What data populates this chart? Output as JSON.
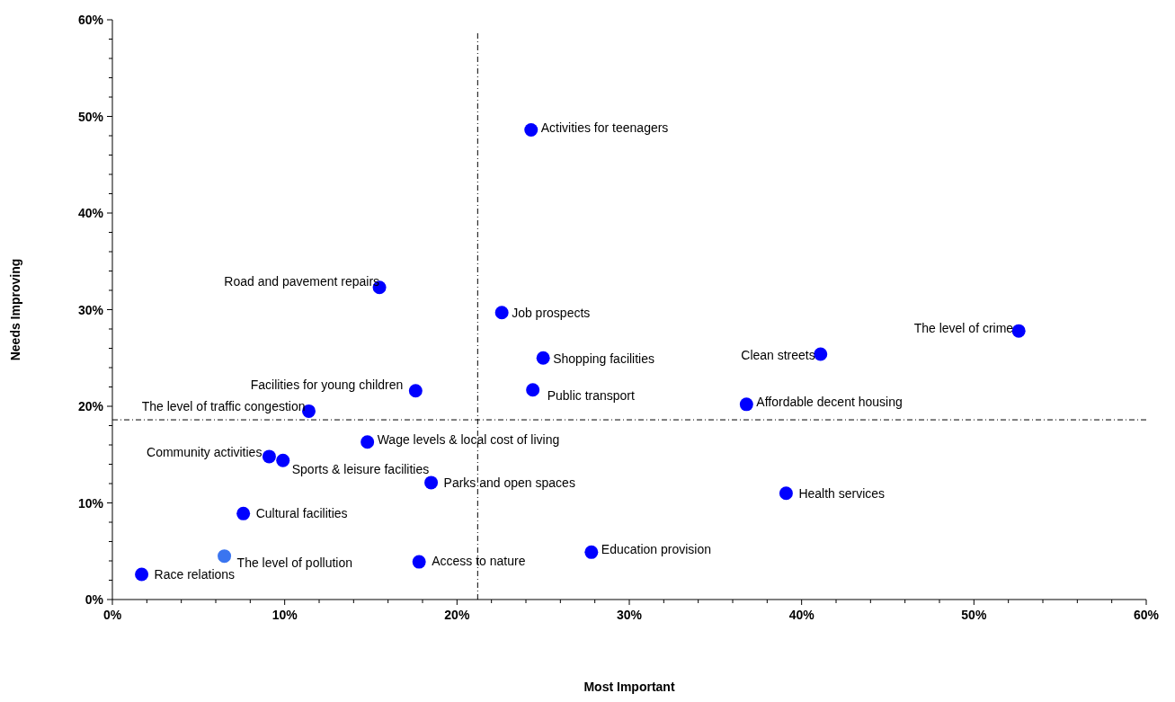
{
  "chart_data": {
    "type": "scatter",
    "xlabel": "Most Important",
    "ylabel": "Needs Improving",
    "x": [
      24.3,
      15.5,
      22.6,
      52.6,
      41.1,
      25.0,
      17.6,
      24.4,
      36.8,
      11.4,
      14.8,
      9.1,
      9.9,
      18.5,
      39.1,
      7.6,
      6.5,
      27.8,
      17.8,
      1.7
    ],
    "values": [
      48.6,
      32.3,
      29.7,
      27.8,
      25.4,
      25.0,
      21.6,
      21.7,
      20.2,
      19.5,
      16.3,
      14.8,
      14.4,
      12.1,
      11.0,
      8.9,
      4.5,
      4.9,
      3.9,
      2.6
    ],
    "colors": [
      "#0000ff",
      "#0000ff",
      "#0000ff",
      "#0000ff",
      "#0000ff",
      "#0000ff",
      "#0000ff",
      "#0000ff",
      "#0000ff",
      "#0000ff",
      "#0000ff",
      "#0000ff",
      "#0000ff",
      "#0000ff",
      "#0000ff",
      "#0000ff",
      "#3a75f0",
      "#0000ff",
      "#0000ff",
      "#0000ff"
    ],
    "marker": "circle",
    "grid": false,
    "xlim": [
      0,
      60
    ],
    "ylim": [
      0,
      60
    ],
    "xticks": [
      {
        "value": 0,
        "label": "0%"
      },
      {
        "value": 2,
        "label": null
      },
      {
        "value": 4,
        "label": null
      },
      {
        "value": 6,
        "label": null
      },
      {
        "value": 8,
        "label": null
      },
      {
        "value": 10,
        "label": "10%"
      },
      {
        "value": 12,
        "label": null
      },
      {
        "value": 14,
        "label": null
      },
      {
        "value": 16,
        "label": null
      },
      {
        "value": 18,
        "label": null
      },
      {
        "value": 20,
        "label": "20%"
      },
      {
        "value": 22,
        "label": null
      },
      {
        "value": 24,
        "label": null
      },
      {
        "value": 26,
        "label": null
      },
      {
        "value": 28,
        "label": null
      },
      {
        "value": 30,
        "label": "30%"
      },
      {
        "value": 32,
        "label": null
      },
      {
        "value": 34,
        "label": null
      },
      {
        "value": 36,
        "label": null
      },
      {
        "value": 38,
        "label": null
      },
      {
        "value": 40,
        "label": "40%"
      },
      {
        "value": 42,
        "label": null
      },
      {
        "value": 44,
        "label": null
      },
      {
        "value": 46,
        "label": null
      },
      {
        "value": 48,
        "label": null
      },
      {
        "value": 50,
        "label": "50%"
      },
      {
        "value": 52,
        "label": null
      },
      {
        "value": 54,
        "label": null
      },
      {
        "value": 56,
        "label": null
      },
      {
        "value": 58,
        "label": null
      },
      {
        "value": 60,
        "label": "60%"
      }
    ],
    "yticks": [
      {
        "value": 0,
        "label": "0%"
      },
      {
        "value": 2,
        "label": null
      },
      {
        "value": 4,
        "label": null
      },
      {
        "value": 6,
        "label": null
      },
      {
        "value": 8,
        "label": null
      },
      {
        "value": 10,
        "label": "10%"
      },
      {
        "value": 12,
        "label": null
      },
      {
        "value": 14,
        "label": null
      },
      {
        "value": 16,
        "label": null
      },
      {
        "value": 18,
        "label": null
      },
      {
        "value": 20,
        "label": "20%"
      },
      {
        "value": 22,
        "label": null
      },
      {
        "value": 24,
        "label": null
      },
      {
        "value": 26,
        "label": null
      },
      {
        "value": 28,
        "label": null
      },
      {
        "value": 30,
        "label": "30%"
      },
      {
        "value": 32,
        "label": null
      },
      {
        "value": 34,
        "label": null
      },
      {
        "value": 36,
        "label": null
      },
      {
        "value": 38,
        "label": null
      },
      {
        "value": 40,
        "label": "40%"
      },
      {
        "value": 42,
        "label": null
      },
      {
        "value": 44,
        "label": null
      },
      {
        "value": 46,
        "label": null
      },
      {
        "value": 48,
        "label": null
      },
      {
        "value": 50,
        "label": "50%"
      },
      {
        "value": 52,
        "label": null
      },
      {
        "value": 54,
        "label": null
      },
      {
        "value": 56,
        "label": null
      },
      {
        "value": 58,
        "label": null
      },
      {
        "value": 60,
        "label": "60%"
      }
    ],
    "ref_lines": [
      {
        "axis": "x",
        "value": 21.2,
        "line_style": "dashdot",
        "color": "#000000"
      },
      {
        "axis": "y",
        "value": 18.6,
        "line_style": "dashdot",
        "color": "#000000"
      }
    ],
    "annotations": [
      {
        "text": "Activities for teenagers",
        "x": 24.3,
        "y": 48.6
      },
      {
        "text": "Road and pavement repairs",
        "x": 15.5,
        "y": 32.3
      },
      {
        "text": "Job prospects",
        "x": 22.6,
        "y": 29.7
      },
      {
        "text": "The level of crime",
        "x": 52.6,
        "y": 27.8
      },
      {
        "text": "Clean streets",
        "x": 41.1,
        "y": 25.4
      },
      {
        "text": "Shopping facilities",
        "x": 25.0,
        "y": 25.0
      },
      {
        "text": "Facilities for young children",
        "x": 17.6,
        "y": 21.6
      },
      {
        "text": "Public transport",
        "x": 24.4,
        "y": 21.7
      },
      {
        "text": "Affordable decent housing",
        "x": 36.8,
        "y": 20.2
      },
      {
        "text": "The level of traffic congestion",
        "x": 11.4,
        "y": 19.5
      },
      {
        "text": "Wage levels & local cost of living",
        "x": 14.8,
        "y": 16.3
      },
      {
        "text": "Community activities",
        "x": 9.1,
        "y": 14.8
      },
      {
        "text": "Sports & leisure facilities",
        "x": 9.9,
        "y": 14.4
      },
      {
        "text": "Parks and open spaces",
        "x": 18.5,
        "y": 12.1
      },
      {
        "text": "Health services",
        "x": 39.1,
        "y": 11.0
      },
      {
        "text": "Cultural facilities",
        "x": 7.6,
        "y": 8.9
      },
      {
        "text": "The level of pollution",
        "x": 6.5,
        "y": 4.5
      },
      {
        "text": "Education provision",
        "x": 27.8,
        "y": 4.9
      },
      {
        "text": "Access to nature",
        "x": 17.8,
        "y": 3.9
      },
      {
        "text": "Race relations",
        "x": 1.7,
        "y": 2.6
      }
    ]
  }
}
